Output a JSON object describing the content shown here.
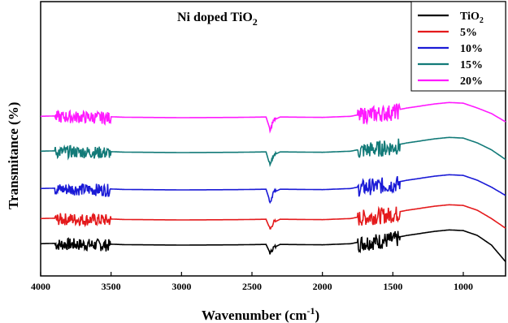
{
  "chart_data": {
    "type": "line",
    "title": "Ni doped TiO",
    "title_subscript": "2",
    "xlabel": "Wavenumber (cm",
    "xlabel_superscript": "-1",
    "xlabel_suffix": ")",
    "ylabel": "Transmitance (%)",
    "xlim": [
      4000,
      700
    ],
    "x_reversed": true,
    "x_ticks": [
      4000,
      3500,
      3000,
      2500,
      2000,
      1500,
      1000
    ],
    "y_ticks_shown": false,
    "grid": false,
    "legend_position": "top-right",
    "series": [
      {
        "name": "TiO",
        "name_subscript": "2",
        "color": "#000000",
        "offset": 0,
        "points": [
          [
            4000,
            0.1
          ],
          [
            3800,
            0.15
          ],
          [
            3600,
            0.1
          ],
          [
            3400,
            0.03
          ],
          [
            3000,
            0
          ],
          [
            2600,
            0.02
          ],
          [
            2400,
            0.05
          ],
          [
            2370,
            -0.6
          ],
          [
            2350,
            -0.2
          ],
          [
            2300,
            0.05
          ],
          [
            2000,
            0.02
          ],
          [
            1800,
            0.1
          ],
          [
            1700,
            0.3
          ],
          [
            1600,
            0.4
          ],
          [
            1500,
            0.5
          ],
          [
            1400,
            0.7
          ],
          [
            1200,
            1.0
          ],
          [
            1100,
            1.1
          ],
          [
            1000,
            1.05
          ],
          [
            900,
            0.7
          ],
          [
            800,
            0
          ],
          [
            700,
            -1.2
          ]
        ]
      },
      {
        "name": "5%",
        "color": "#e41a1c",
        "offset": 1.0,
        "points": [
          [
            4000,
            0.1
          ],
          [
            3800,
            0.15
          ],
          [
            3600,
            0.1
          ],
          [
            3400,
            0.03
          ],
          [
            3000,
            0
          ],
          [
            2600,
            0.02
          ],
          [
            2400,
            0.05
          ],
          [
            2370,
            -0.7
          ],
          [
            2350,
            -0.2
          ],
          [
            2300,
            0.05
          ],
          [
            2000,
            0.02
          ],
          [
            1800,
            0.1
          ],
          [
            1700,
            0.3
          ],
          [
            1600,
            0.4
          ],
          [
            1500,
            0.5
          ],
          [
            1400,
            0.7
          ],
          [
            1200,
            1.0
          ],
          [
            1100,
            1.1
          ],
          [
            1000,
            1.05
          ],
          [
            900,
            0.7
          ],
          [
            800,
            0.1
          ],
          [
            700,
            -0.6
          ]
        ]
      },
      {
        "name": "10%",
        "color": "#1a1ad6",
        "offset": 2.0,
        "points": [
          [
            4000,
            0.1
          ],
          [
            3800,
            0.15
          ],
          [
            3600,
            0.1
          ],
          [
            3400,
            0.03
          ],
          [
            3000,
            0
          ],
          [
            2600,
            0.02
          ],
          [
            2400,
            0.05
          ],
          [
            2370,
            -0.9
          ],
          [
            2350,
            -0.2
          ],
          [
            2300,
            0.05
          ],
          [
            2000,
            0.02
          ],
          [
            1800,
            0.1
          ],
          [
            1700,
            0.3
          ],
          [
            1600,
            0.4
          ],
          [
            1500,
            0.5
          ],
          [
            1400,
            0.7
          ],
          [
            1200,
            1.0
          ],
          [
            1100,
            1.1
          ],
          [
            1000,
            1.05
          ],
          [
            900,
            0.7
          ],
          [
            800,
            0.2
          ],
          [
            700,
            -0.4
          ]
        ]
      },
      {
        "name": "15%",
        "color": "#127a78",
        "offset": 3.0,
        "points": [
          [
            4000,
            0.1
          ],
          [
            3800,
            0.15
          ],
          [
            3600,
            0.1
          ],
          [
            3400,
            0.03
          ],
          [
            3000,
            0
          ],
          [
            2600,
            0.02
          ],
          [
            2400,
            0.05
          ],
          [
            2370,
            -1.0
          ],
          [
            2350,
            -0.2
          ],
          [
            2300,
            0.05
          ],
          [
            2000,
            0.02
          ],
          [
            1800,
            0.1
          ],
          [
            1700,
            0.3
          ],
          [
            1600,
            0.4
          ],
          [
            1500,
            0.5
          ],
          [
            1400,
            0.7
          ],
          [
            1200,
            1.0
          ],
          [
            1100,
            1.1
          ],
          [
            1000,
            1.05
          ],
          [
            900,
            0.7
          ],
          [
            800,
            0.2
          ],
          [
            700,
            -0.5
          ]
        ]
      },
      {
        "name": "20%",
        "color": "#ff1aff",
        "offset": 4.0,
        "points": [
          [
            4000,
            0.1
          ],
          [
            3800,
            0.15
          ],
          [
            3600,
            0.1
          ],
          [
            3400,
            0.03
          ],
          [
            3000,
            0
          ],
          [
            2600,
            0.02
          ],
          [
            2400,
            0.05
          ],
          [
            2370,
            -0.9
          ],
          [
            2350,
            -0.2
          ],
          [
            2300,
            0.05
          ],
          [
            2000,
            0.02
          ],
          [
            1800,
            0.1
          ],
          [
            1700,
            0.3
          ],
          [
            1600,
            0.4
          ],
          [
            1500,
            0.5
          ],
          [
            1400,
            0.7
          ],
          [
            1200,
            1.0
          ],
          [
            1100,
            1.1
          ],
          [
            1000,
            1.05
          ],
          [
            900,
            0.7
          ],
          [
            800,
            0.3
          ],
          [
            700,
            -0.3
          ]
        ]
      }
    ]
  }
}
